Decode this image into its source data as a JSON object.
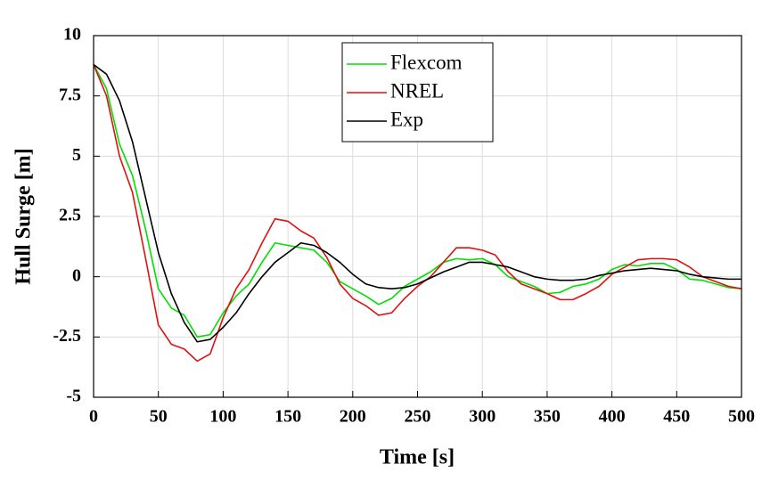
{
  "chart_data": {
    "type": "line",
    "xlabel": "Time [s]",
    "ylabel": "Hull Surge [m]",
    "x": [
      0,
      10,
      20,
      30,
      40,
      50,
      60,
      70,
      80,
      90,
      100,
      110,
      120,
      130,
      140,
      150,
      160,
      170,
      180,
      190,
      200,
      210,
      220,
      230,
      240,
      250,
      260,
      270,
      280,
      290,
      300,
      310,
      320,
      330,
      340,
      350,
      360,
      370,
      380,
      390,
      400,
      410,
      420,
      430,
      440,
      450,
      460,
      470,
      480,
      490,
      500
    ],
    "series": [
      {
        "name": "Flexcom",
        "color": "#00e000",
        "values": [
          8.8,
          7.8,
          5.5,
          4.2,
          2.0,
          -0.5,
          -1.3,
          -1.6,
          -2.5,
          -2.4,
          -1.5,
          -0.8,
          -0.3,
          0.6,
          1.4,
          1.3,
          1.2,
          1.1,
          0.6,
          -0.2,
          -0.5,
          -0.8,
          -1.15,
          -0.9,
          -0.4,
          -0.1,
          0.2,
          0.6,
          0.75,
          0.7,
          0.75,
          0.5,
          0.0,
          -0.2,
          -0.4,
          -0.7,
          -0.65,
          -0.4,
          -0.3,
          -0.1,
          0.3,
          0.5,
          0.45,
          0.55,
          0.55,
          0.3,
          -0.1,
          -0.15,
          -0.3,
          -0.45,
          -0.5
        ]
      },
      {
        "name": "NREL",
        "color": "#e01010",
        "values": [
          8.8,
          7.5,
          5.0,
          3.5,
          0.8,
          -2.0,
          -2.8,
          -3.0,
          -3.5,
          -3.2,
          -1.7,
          -0.5,
          0.3,
          1.4,
          2.4,
          2.3,
          1.9,
          1.6,
          0.8,
          -0.3,
          -0.9,
          -1.2,
          -1.6,
          -1.5,
          -0.9,
          -0.4,
          0.0,
          0.6,
          1.2,
          1.2,
          1.1,
          0.9,
          0.2,
          -0.3,
          -0.5,
          -0.7,
          -0.95,
          -0.95,
          -0.7,
          -0.4,
          0.1,
          0.4,
          0.7,
          0.75,
          0.75,
          0.7,
          0.4,
          0.0,
          -0.2,
          -0.4,
          -0.5
        ]
      },
      {
        "name": "Exp",
        "color": "#000000",
        "values": [
          8.8,
          8.4,
          7.3,
          5.6,
          3.3,
          1.0,
          -0.7,
          -1.9,
          -2.7,
          -2.6,
          -2.1,
          -1.5,
          -0.7,
          0.0,
          0.6,
          1.0,
          1.4,
          1.3,
          1.0,
          0.6,
          0.1,
          -0.3,
          -0.45,
          -0.5,
          -0.45,
          -0.3,
          -0.05,
          0.2,
          0.4,
          0.6,
          0.6,
          0.5,
          0.4,
          0.2,
          0.0,
          -0.1,
          -0.15,
          -0.15,
          -0.1,
          0.05,
          0.15,
          0.25,
          0.3,
          0.35,
          0.3,
          0.25,
          0.1,
          0.0,
          -0.05,
          -0.1,
          -0.1
        ]
      }
    ],
    "xlim": [
      0,
      500
    ],
    "xticks": [
      0,
      50,
      100,
      150,
      200,
      250,
      300,
      350,
      400,
      450,
      500
    ],
    "ylim": [
      -5,
      10
    ],
    "yticks": [
      -5,
      -2.5,
      0,
      2.5,
      5,
      7.5,
      10
    ],
    "grid": true,
    "legend": "top"
  }
}
